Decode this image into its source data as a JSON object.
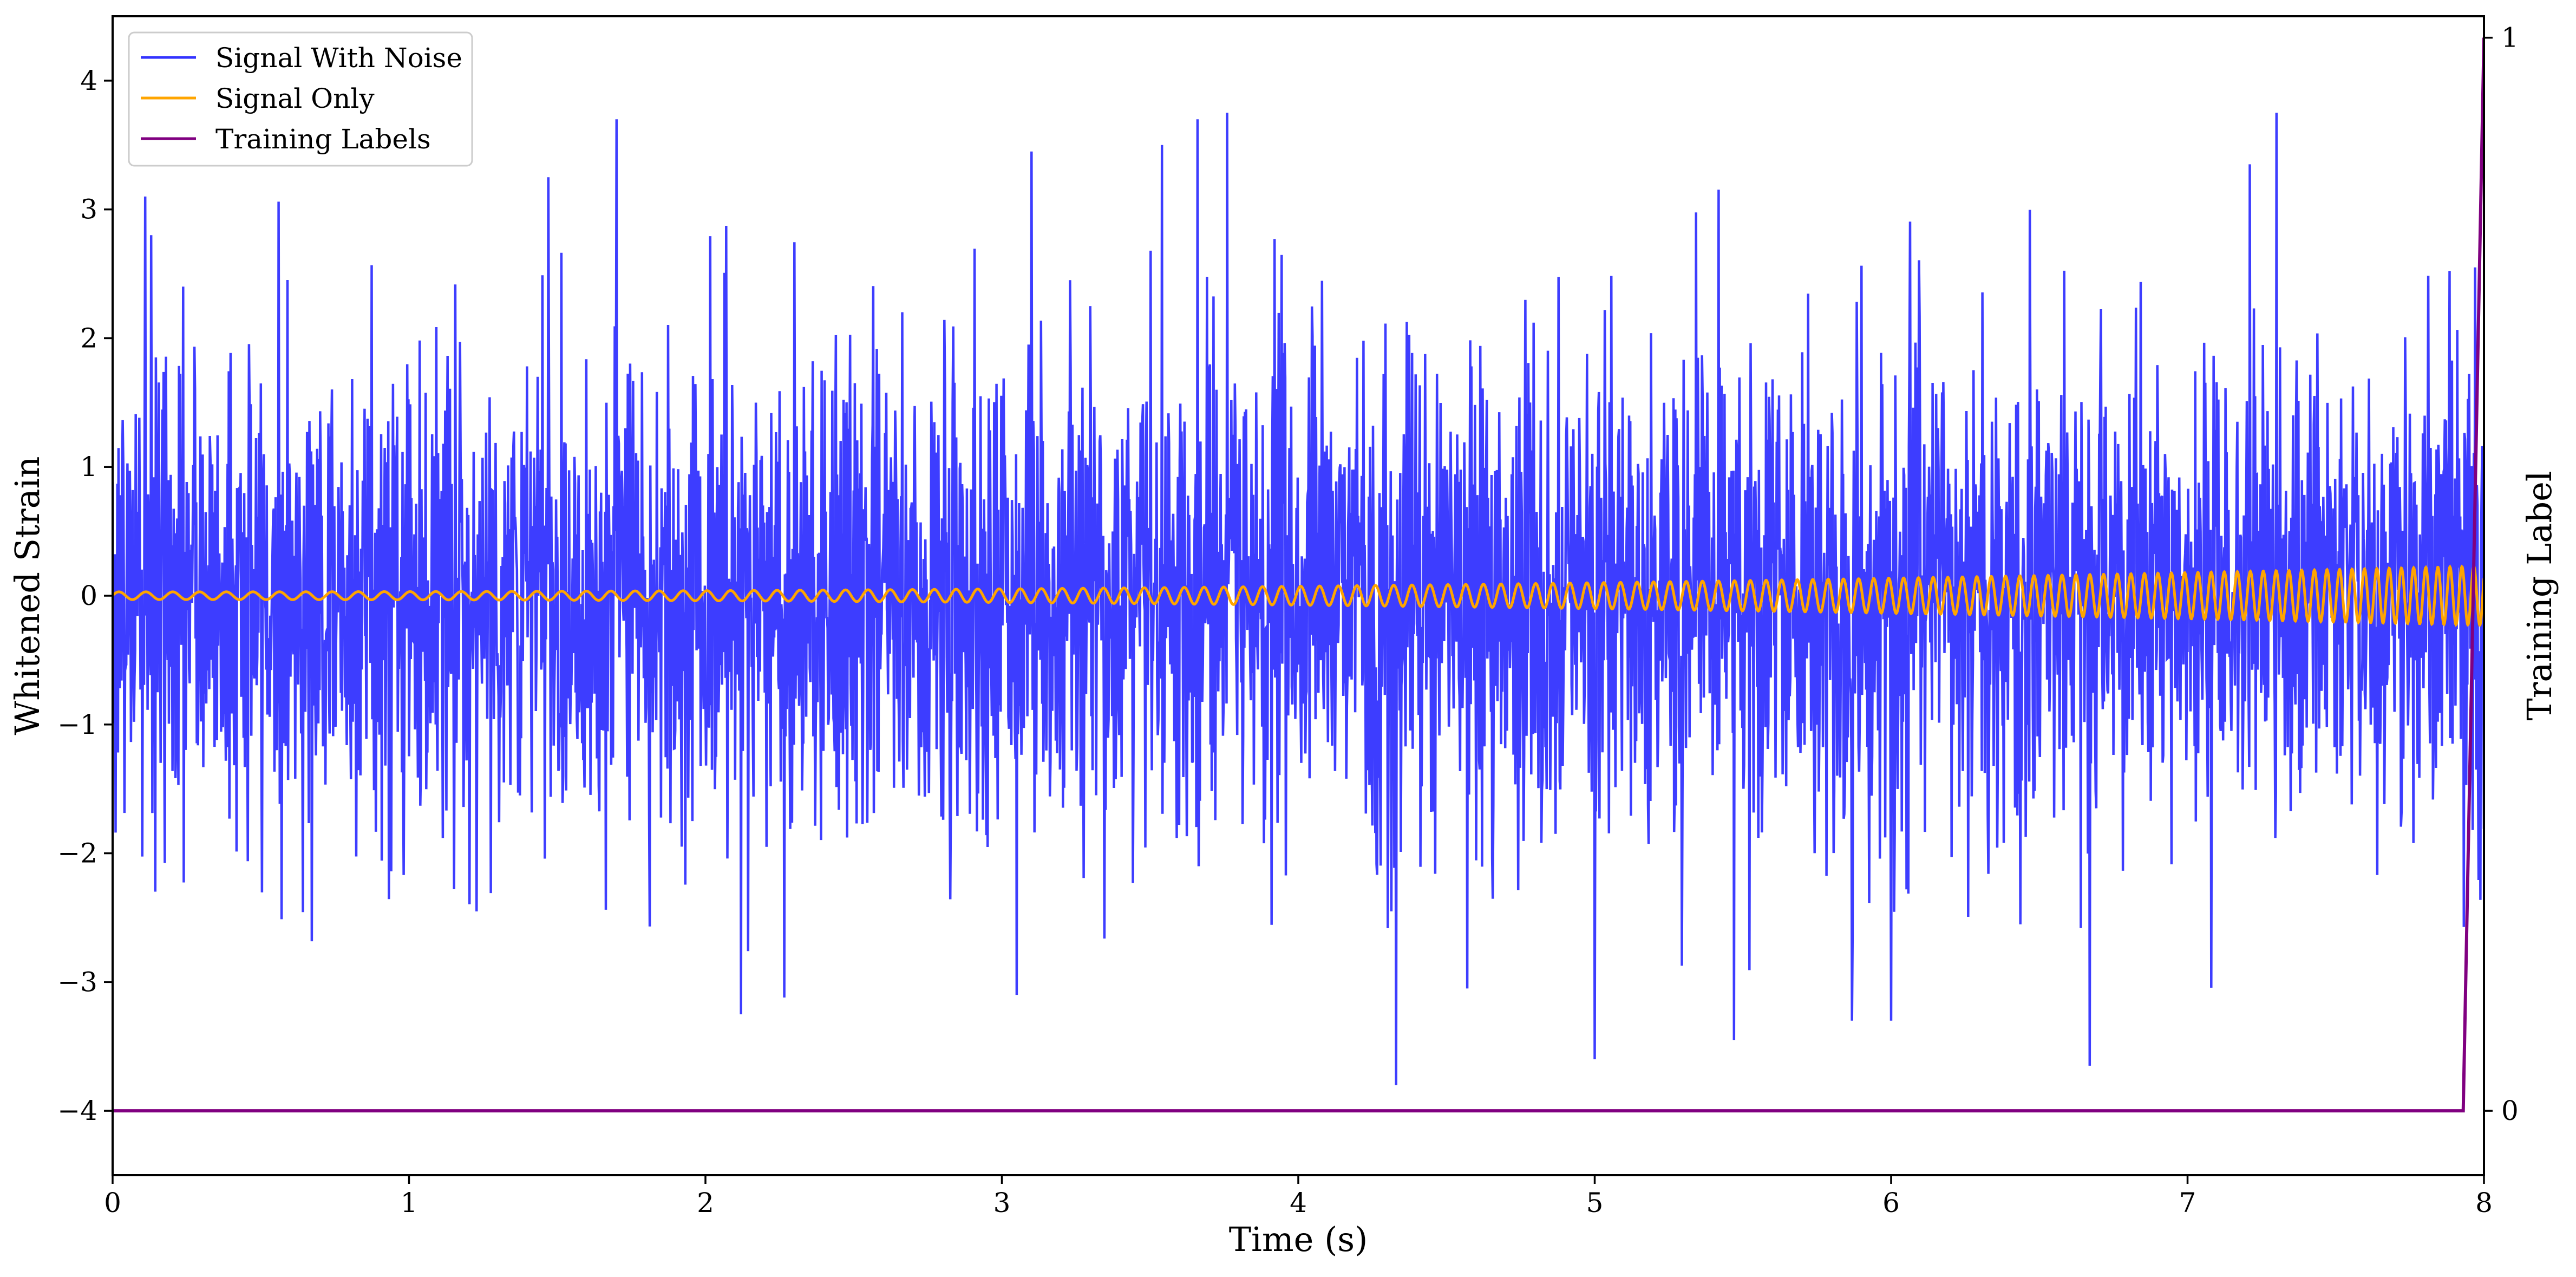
{
  "chart_data": {
    "type": "line",
    "xlabel": "Time (s)",
    "ylabel": "Whitened Strain",
    "y2label": "Training Label",
    "xlim": [
      0,
      8
    ],
    "ylim": [
      -4.5,
      4.5
    ],
    "y2lim": [
      -0.06,
      1.02
    ],
    "xticks": [
      0,
      1,
      2,
      3,
      4,
      5,
      6,
      7,
      8
    ],
    "xtick_labels": [
      "0",
      "1",
      "2",
      "3",
      "4",
      "5",
      "6",
      "7",
      "8"
    ],
    "yticks": [
      -4,
      -3,
      -2,
      -1,
      0,
      1,
      2,
      3,
      4
    ],
    "ytick_labels": [
      "−4",
      "−3",
      "−2",
      "−1",
      "0",
      "1",
      "2",
      "3",
      "4"
    ],
    "y2ticks": [
      0,
      1
    ],
    "y2tick_labels": [
      "0",
      "1"
    ],
    "grid": false,
    "legend_position": "top-left",
    "legend": [
      "Signal With Noise",
      "Signal Only",
      "Training Labels"
    ],
    "series": [
      {
        "name": "Signal With Noise",
        "color": "#3333ff",
        "axis": "left",
        "description_values": "white noise, approx. std 1.0, peaks between -3.8 and 3.8",
        "noise_std": 1.0,
        "peaks": [
          {
            "x": 0.11,
            "y": 3.1
          },
          {
            "x": 0.13,
            "y": 2.8
          },
          {
            "x": 1.7,
            "y": 3.7
          },
          {
            "x": 1.47,
            "y": 3.25
          },
          {
            "x": 2.12,
            "y": -3.25
          },
          {
            "x": 3.1,
            "y": 3.45
          },
          {
            "x": 3.54,
            "y": 3.5
          },
          {
            "x": 3.66,
            "y": 3.7
          },
          {
            "x": 3.76,
            "y": 3.75
          },
          {
            "x": 4.33,
            "y": -3.8
          },
          {
            "x": 5.0,
            "y": -3.6
          },
          {
            "x": 5.47,
            "y": -3.45
          },
          {
            "x": 6.67,
            "y": -3.65
          },
          {
            "x": 7.3,
            "y": 3.75
          },
          {
            "x": 7.21,
            "y": 3.35
          },
          {
            "x": 4.57,
            "y": -3.05
          },
          {
            "x": 3.05,
            "y": -3.1
          },
          {
            "x": 7.97,
            "y": 2.55
          }
        ]
      },
      {
        "name": "Signal Only",
        "color": "#ffa500",
        "axis": "left",
        "chirp": {
          "amp_start": 0.03,
          "amp_end": 0.23,
          "freq_start_hz": 11,
          "freq_end_hz": 25
        }
      },
      {
        "name": "Training Labels",
        "color": "#800080",
        "axis": "right",
        "x": [
          0,
          7.93,
          8.0
        ],
        "y": [
          0,
          0,
          1
        ]
      }
    ]
  }
}
